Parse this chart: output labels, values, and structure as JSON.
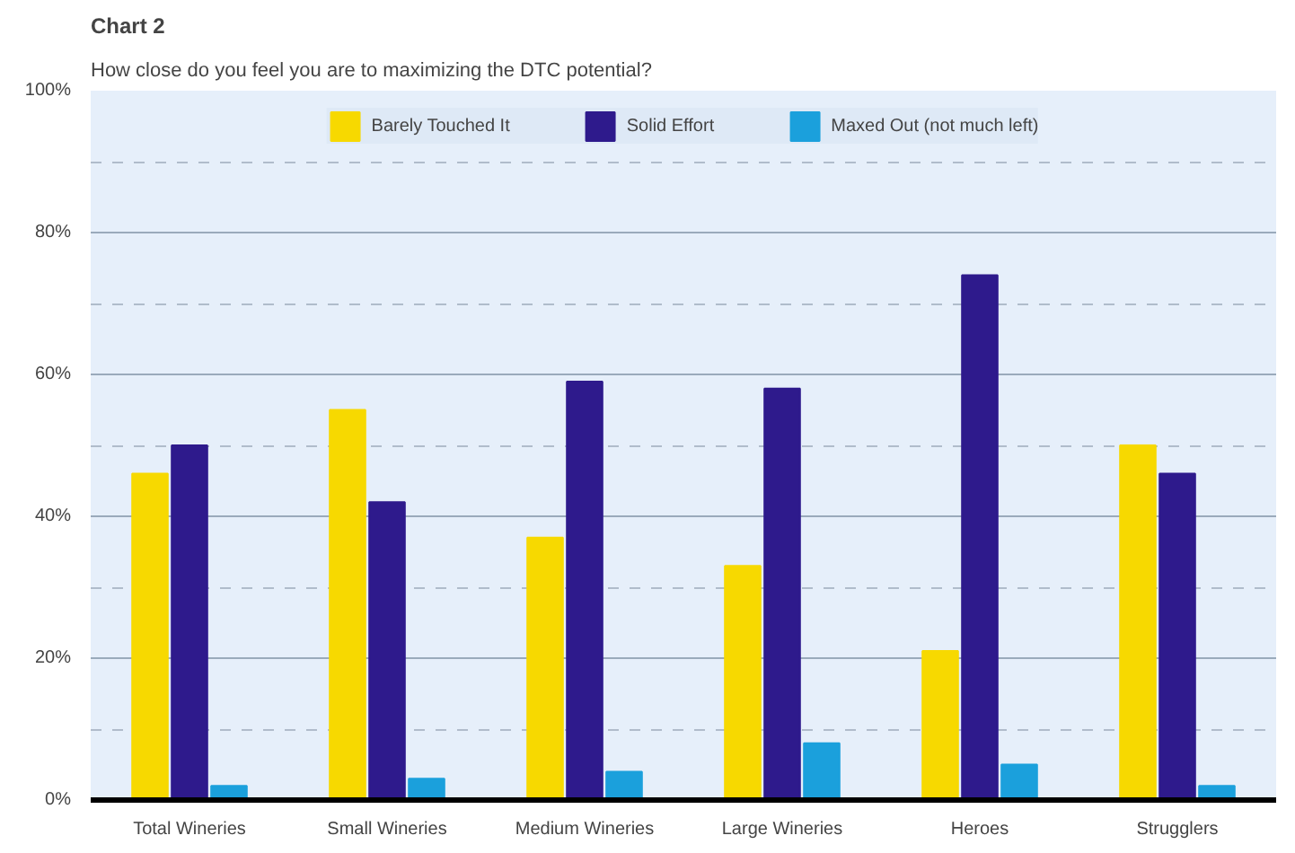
{
  "chart_data": {
    "type": "bar",
    "title": "Chart 2",
    "subtitle": "How close do you feel you are to maximizing the DTC potential?",
    "categories": [
      "Total Wineries",
      "Small Wineries",
      "Medium Wineries",
      "Large Wineries",
      "Heroes",
      "Strugglers"
    ],
    "series": [
      {
        "name": "Barely Touched It",
        "color": "#f7d900",
        "values": [
          46,
          55,
          37,
          33,
          21,
          50
        ]
      },
      {
        "name": "Solid Effort",
        "color": "#2e1a8c",
        "values": [
          50,
          42,
          59,
          58,
          74,
          46
        ]
      },
      {
        "name": "Maxed Out (not much left)",
        "color": "#1ba0dc",
        "values": [
          2,
          3,
          4,
          8,
          5,
          2
        ]
      }
    ],
    "ylim": [
      0,
      100
    ],
    "yticks": [
      {
        "value": 0,
        "label": "0%"
      },
      {
        "value": 20,
        "label": "20%"
      },
      {
        "value": 40,
        "label": "40%"
      },
      {
        "value": 60,
        "label": "60%"
      },
      {
        "value": 80,
        "label": "80%"
      },
      {
        "value": 100,
        "label": "100%"
      }
    ],
    "grid": "y",
    "legend": "top"
  }
}
